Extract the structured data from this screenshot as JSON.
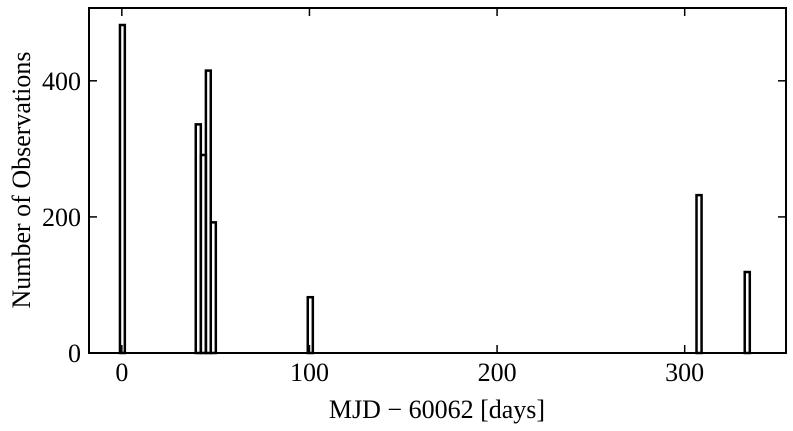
{
  "chart_data": {
    "type": "histogram",
    "xlabel": "MJD − 60062 [days]",
    "ylabel": "Number of Observations",
    "bins": [
      -1,
      1.6,
      39.4,
      42.1,
      44.8,
      47.4,
      50.1,
      99.1,
      101.8,
      306.3,
      309,
      332,
      334.7
    ],
    "counts": [
      482,
      0,
      336,
      291,
      415,
      192,
      0,
      82,
      0,
      232,
      0,
      119
    ],
    "color": "#000000",
    "xlim": [
      -17.5,
      354
    ],
    "ylim": [
      0,
      507
    ],
    "xticks": [
      0,
      100,
      200,
      300
    ],
    "yticks": [
      0,
      200,
      400
    ],
    "grid": false
  }
}
